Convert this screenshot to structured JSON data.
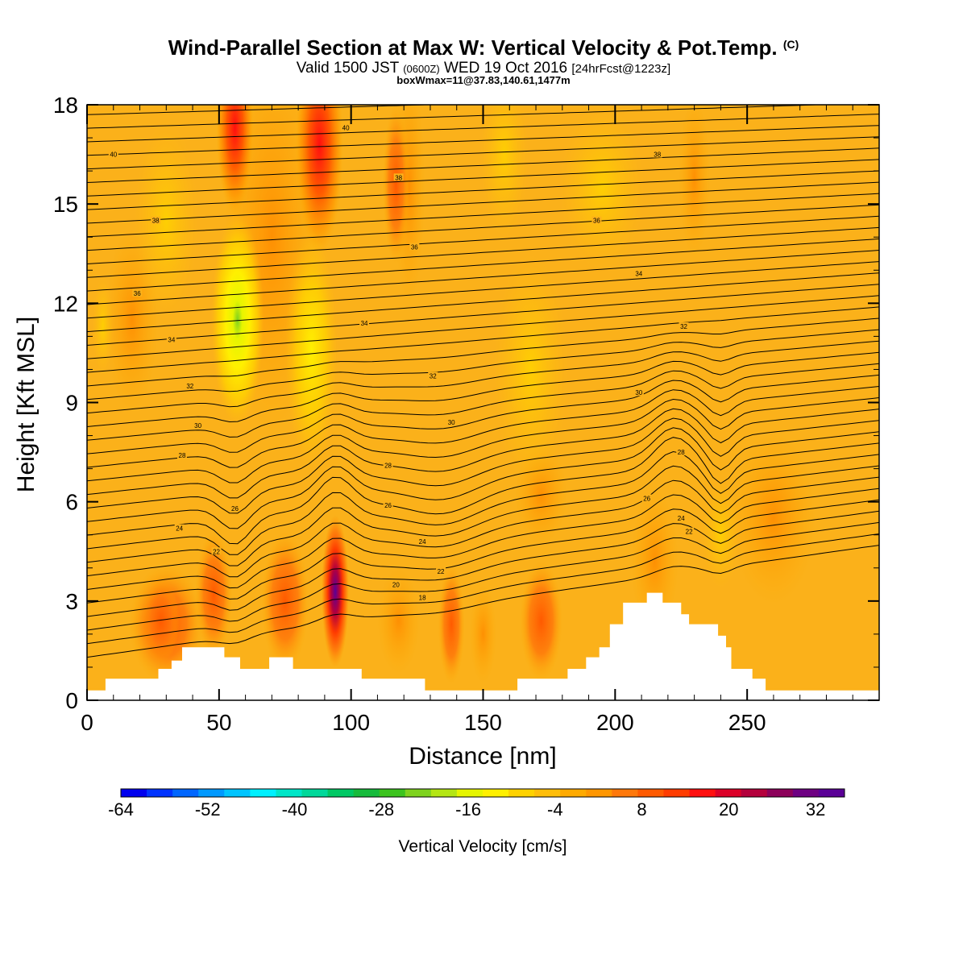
{
  "header": {
    "title": "Wind-Parallel Section at Max W: Vertical Velocity & Pot.Temp.",
    "copyright": "(C)",
    "valid_prefix": "Valid 1500 JST",
    "valid_utc": "(0600Z)",
    "valid_date": "WED 19 Oct 2016",
    "forecast": "[24hrFcst@1223z]",
    "box_info": "boxWmax=11@37.83,140.61,1477m"
  },
  "colors": {
    "background_field": "#fbb11a",
    "contour": "#000000",
    "terrain": "#ffffff",
    "colorbar": [
      "#0000ee",
      "#0033ff",
      "#0066ff",
      "#0099ff",
      "#00c4ff",
      "#00f0ff",
      "#00e6c8",
      "#00d89a",
      "#00c864",
      "#16bb3c",
      "#3cc31e",
      "#7ed21e",
      "#b4e614",
      "#e6f500",
      "#fff000",
      "#ffd200",
      "#ffbe0a",
      "#ffaa00",
      "#ff9600",
      "#ff780a",
      "#ff5a00",
      "#ff3c00",
      "#ff0f0f",
      "#dc0028",
      "#b4003c",
      "#8c005a",
      "#6e0082",
      "#5a0096"
    ]
  },
  "chart_data": {
    "type": "heatmap",
    "title": "Wind-Parallel Section at Max W: Vertical Velocity & Pot.Temp.",
    "xlabel": "Distance [nm]",
    "ylabel": "Height [Kft MSL]",
    "xlim": [
      0,
      300
    ],
    "ylim": [
      0,
      18
    ],
    "x_ticks": [
      0,
      50,
      100,
      150,
      200,
      250
    ],
    "x_tick_labels": [
      "0",
      "50",
      "100",
      "150",
      "200",
      "250"
    ],
    "y_ticks": [
      0,
      3,
      6,
      9,
      12,
      15,
      18
    ],
    "y_tick_labels": [
      "0",
      "3",
      "6",
      "9",
      "12",
      "15",
      "18"
    ],
    "colorbar": {
      "title": "Vertical Velocity [cm/s]",
      "min": -64,
      "max": 36,
      "step": 4,
      "labels": [
        "-64",
        "-52",
        "-40",
        "-28",
        "-16",
        "-4",
        "8",
        "20",
        "32"
      ],
      "label_values": [
        -64,
        -52,
        -40,
        -28,
        -16,
        -4,
        8,
        20,
        32
      ]
    },
    "terrain": [
      {
        "x": 0,
        "h": 0.3
      },
      {
        "x": 7,
        "h": 0.3
      },
      {
        "x": 7,
        "h": 0.65
      },
      {
        "x": 27,
        "h": 0.65
      },
      {
        "x": 27,
        "h": 0.95
      },
      {
        "x": 32,
        "h": 0.95
      },
      {
        "x": 32,
        "h": 1.2
      },
      {
        "x": 36,
        "h": 1.2
      },
      {
        "x": 36,
        "h": 1.6
      },
      {
        "x": 52,
        "h": 1.6
      },
      {
        "x": 52,
        "h": 1.3
      },
      {
        "x": 58,
        "h": 1.3
      },
      {
        "x": 58,
        "h": 0.95
      },
      {
        "x": 69,
        "h": 0.95
      },
      {
        "x": 69,
        "h": 1.3
      },
      {
        "x": 78,
        "h": 1.3
      },
      {
        "x": 78,
        "h": 0.95
      },
      {
        "x": 104,
        "h": 0.95
      },
      {
        "x": 104,
        "h": 0.65
      },
      {
        "x": 128,
        "h": 0.65
      },
      {
        "x": 128,
        "h": 0.3
      },
      {
        "x": 150,
        "h": 0.3
      },
      {
        "x": 163,
        "h": 0.3
      },
      {
        "x": 163,
        "h": 0.65
      },
      {
        "x": 182,
        "h": 0.65
      },
      {
        "x": 182,
        "h": 0.95
      },
      {
        "x": 189,
        "h": 0.95
      },
      {
        "x": 189,
        "h": 1.3
      },
      {
        "x": 194,
        "h": 1.3
      },
      {
        "x": 194,
        "h": 1.6
      },
      {
        "x": 198,
        "h": 1.6
      },
      {
        "x": 198,
        "h": 2.3
      },
      {
        "x": 203,
        "h": 2.3
      },
      {
        "x": 203,
        "h": 2.95
      },
      {
        "x": 212,
        "h": 2.95
      },
      {
        "x": 212,
        "h": 3.25
      },
      {
        "x": 218,
        "h": 3.25
      },
      {
        "x": 218,
        "h": 2.95
      },
      {
        "x": 225,
        "h": 2.95
      },
      {
        "x": 225,
        "h": 2.6
      },
      {
        "x": 228,
        "h": 2.6
      },
      {
        "x": 228,
        "h": 2.3
      },
      {
        "x": 239,
        "h": 2.3
      },
      {
        "x": 239,
        "h": 1.95
      },
      {
        "x": 242,
        "h": 1.95
      },
      {
        "x": 242,
        "h": 1.6
      },
      {
        "x": 244,
        "h": 1.6
      },
      {
        "x": 244,
        "h": 0.95
      },
      {
        "x": 252,
        "h": 0.95
      },
      {
        "x": 252,
        "h": 0.65
      },
      {
        "x": 257,
        "h": 0.65
      },
      {
        "x": 257,
        "h": 0.3
      },
      {
        "x": 300,
        "h": 0.3
      }
    ],
    "updraft_cores": [
      {
        "x": 94,
        "h": 3.3,
        "w_max": 34
      },
      {
        "x": 75,
        "h": 3.0,
        "w_max": 14
      },
      {
        "x": 48,
        "h": 3.5,
        "w_max": 14
      },
      {
        "x": 172,
        "h": 2.3,
        "w_max": 14
      },
      {
        "x": 88,
        "h": 17.0,
        "w_max": 20
      },
      {
        "x": 55,
        "h": 17.5,
        "w_max": 16
      },
      {
        "x": 27,
        "h": 2.5,
        "w_max": 8
      }
    ],
    "downdraft_cores": [
      {
        "x": 57,
        "h": 11.5,
        "w_min": -24
      },
      {
        "x": 88,
        "h": 10.5,
        "w_min": -14
      },
      {
        "x": 240,
        "h": 5.0,
        "w_min": -12
      }
    ],
    "theta_contour_labels": [
      {
        "value": "40",
        "x": 10,
        "h": 16.5
      },
      {
        "value": "40",
        "x": 98,
        "h": 17.3
      },
      {
        "value": "38",
        "x": 118,
        "h": 15.8
      },
      {
        "value": "38",
        "x": 216,
        "h": 16.5
      },
      {
        "value": "38",
        "x": 26,
        "h": 14.5
      },
      {
        "value": "36",
        "x": 124,
        "h": 13.7
      },
      {
        "value": "36",
        "x": 193,
        "h": 14.5
      },
      {
        "value": "36",
        "x": 19,
        "h": 12.3
      },
      {
        "value": "34",
        "x": 105,
        "h": 11.4
      },
      {
        "value": "34",
        "x": 209,
        "h": 12.9
      },
      {
        "value": "34",
        "x": 32,
        "h": 10.9
      },
      {
        "value": "32",
        "x": 131,
        "h": 9.8
      },
      {
        "value": "32",
        "x": 226,
        "h": 11.3
      },
      {
        "value": "32",
        "x": 39,
        "h": 9.5
      },
      {
        "value": "30",
        "x": 138,
        "h": 8.4
      },
      {
        "value": "30",
        "x": 209,
        "h": 9.3
      },
      {
        "value": "30",
        "x": 42,
        "h": 8.3
      },
      {
        "value": "28",
        "x": 114,
        "h": 7.1
      },
      {
        "value": "28",
        "x": 225,
        "h": 7.5
      },
      {
        "value": "28",
        "x": 36,
        "h": 7.4
      },
      {
        "value": "26",
        "x": 114,
        "h": 5.9
      },
      {
        "value": "26",
        "x": 212,
        "h": 6.1
      },
      {
        "value": "26",
        "x": 56,
        "h": 5.8
      },
      {
        "value": "24",
        "x": 35,
        "h": 5.2
      },
      {
        "value": "24",
        "x": 127,
        "h": 4.8
      },
      {
        "value": "24",
        "x": 225,
        "h": 5.5
      },
      {
        "value": "22",
        "x": 49,
        "h": 4.5
      },
      {
        "value": "22",
        "x": 134,
        "h": 3.9
      },
      {
        "value": "22",
        "x": 228,
        "h": 5.1
      },
      {
        "value": "20",
        "x": 117,
        "h": 3.5
      },
      {
        "value": "18",
        "x": 127,
        "h": 3.1
      }
    ]
  }
}
